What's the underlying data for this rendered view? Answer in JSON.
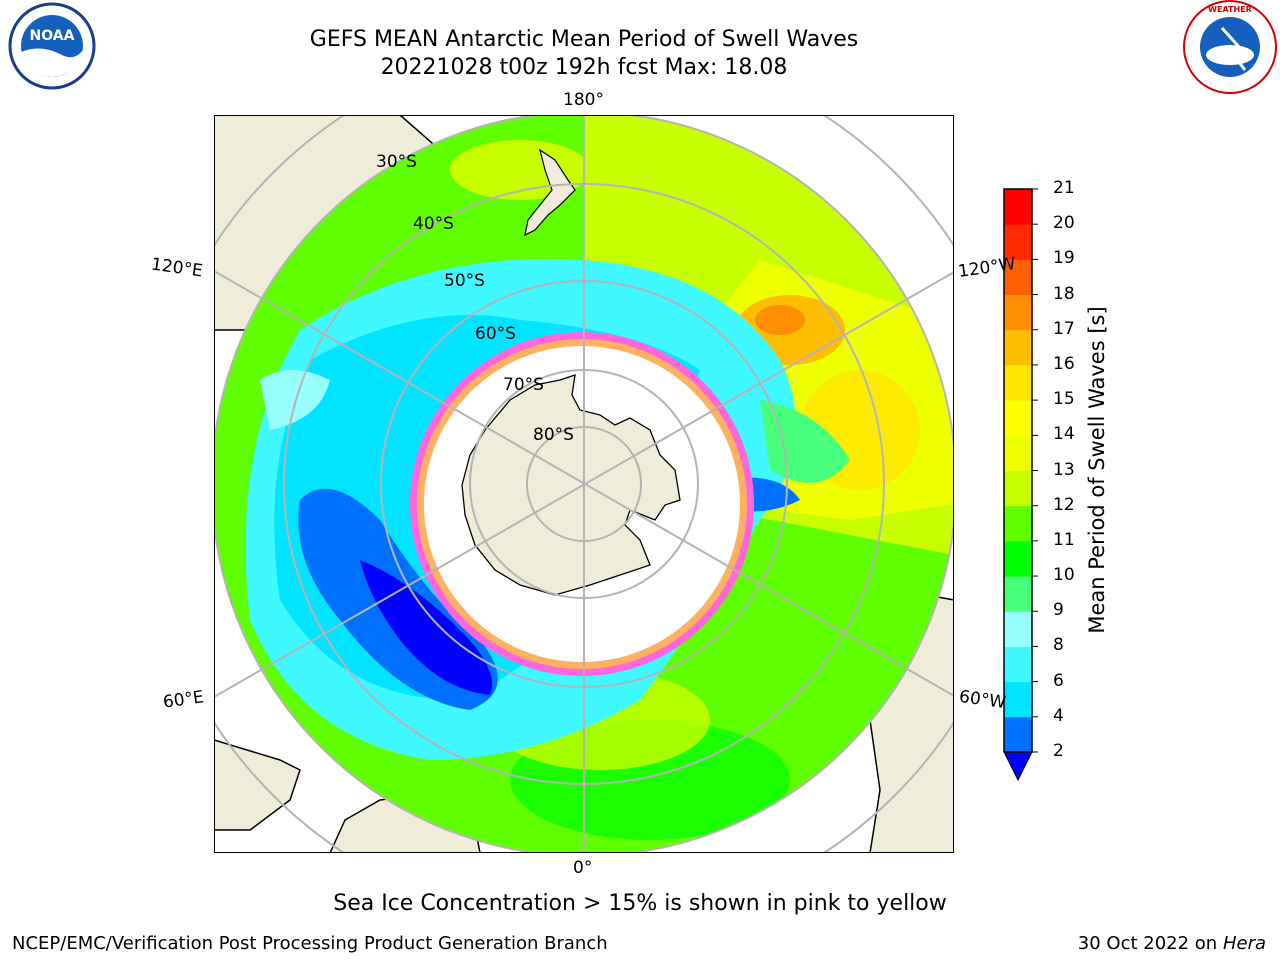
{
  "header": {
    "title_line1": "GEFS MEAN Antarctic Mean Period of Swell Waves",
    "title_line2": "20221028 t00z 192h fcst   Max: 18.08"
  },
  "logos": {
    "left": {
      "name": "noaa-logo",
      "text": "NOAA"
    },
    "right": {
      "name": "nws-logo",
      "text": "NATIONAL WEATHER SERVICE"
    }
  },
  "map": {
    "projection": "south-polar-stereographic",
    "lon_labels": {
      "top": "180°",
      "upper_left": "120°E",
      "upper_right": "120°W",
      "lower_left": "60°E",
      "lower_right": "60°W",
      "bottom": "0°"
    },
    "lat_labels": [
      "30°S",
      "40°S",
      "50°S",
      "60°S",
      "70°S",
      "80°S"
    ],
    "colors": {
      "land": "#efedda",
      "ocean_missing": "#ffffff",
      "grid": "#b4b4b4"
    }
  },
  "colorbar": {
    "label": "Mean Period of Swell Waves [s]",
    "ticks": [
      "2",
      "4",
      "6",
      "8",
      "9",
      "10",
      "11",
      "12",
      "13",
      "14",
      "15",
      "16",
      "17",
      "18",
      "19",
      "20",
      "21"
    ],
    "colors": [
      "#0000ff",
      "#0070ff",
      "#00e4ff",
      "#40f8ff",
      "#98ffff",
      "#48ff7c",
      "#00ff00",
      "#60ff00",
      "#c8ff00",
      "#eeff00",
      "#ffff00",
      "#ffe600",
      "#ffbe00",
      "#ff8e00",
      "#ff6000",
      "#ff2a00",
      "#ff0000"
    ],
    "extend": "min"
  },
  "note": "Sea Ice Concentration > 15% is shown in pink to yellow",
  "footer": {
    "left": "NCEP/EMC/Verification Post Processing Product Generation Branch",
    "right_date": "30 Oct 2022 on ",
    "right_host": "Hera"
  }
}
